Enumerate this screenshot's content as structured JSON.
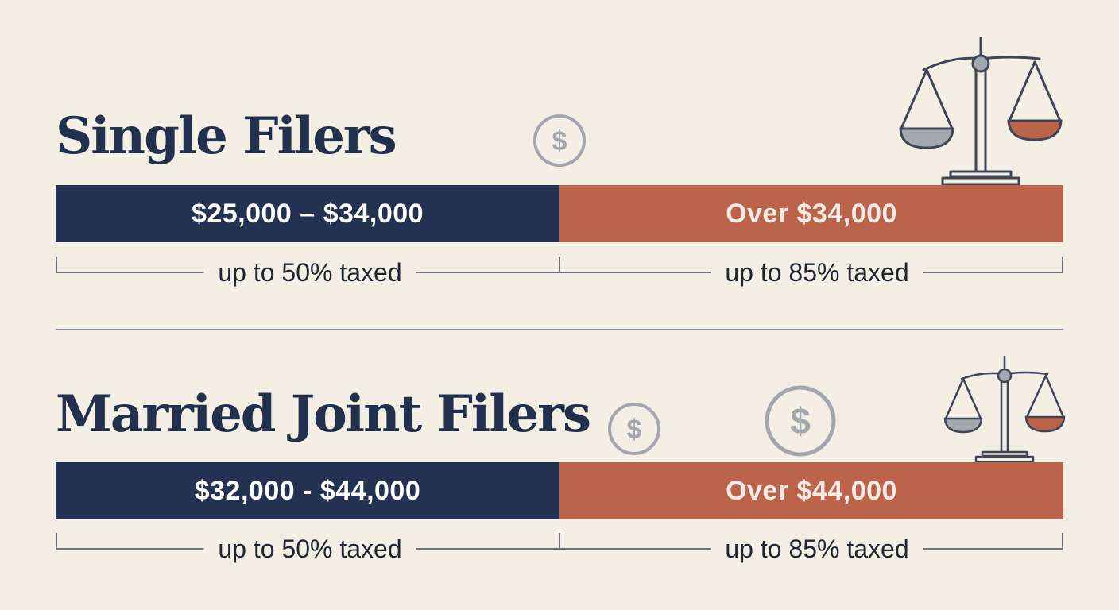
{
  "sections": [
    {
      "title": "Single Filers",
      "lower_range": "$25,000 – $34,000",
      "upper_range": "Over $34,000",
      "lower_note": "up to 50% taxed",
      "upper_note": "up to 85% taxed"
    },
    {
      "title": "Married Joint Filers",
      "lower_range": "$32,000 - $44,000",
      "upper_range": "Over $44,000",
      "lower_note": "up to 50% taxed",
      "upper_note": "up to 85% taxed"
    }
  ],
  "coin_symbol": "$",
  "icons": [
    "dollar-coin-icon",
    "balance-scale-icon"
  ],
  "colors": {
    "background": "#f3efe4",
    "navy": "#243252",
    "terracotta": "#bb644b",
    "gray": "#9a9ea5"
  }
}
